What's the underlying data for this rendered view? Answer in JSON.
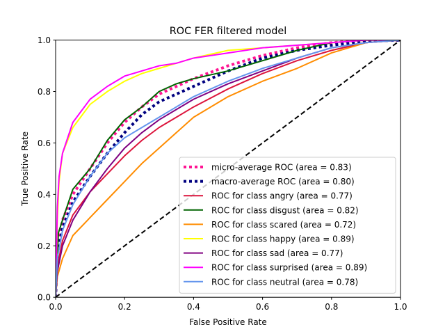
{
  "chart_data": {
    "type": "line",
    "title": "ROC FER filtered model",
    "xlabel": "False Positive Rate",
    "ylabel": "True Positive Rate",
    "xlim": [
      0,
      1
    ],
    "ylim": [
      0,
      1
    ],
    "xticks": [
      "0.0",
      "0.2",
      "0.4",
      "0.6",
      "0.8",
      "1.0"
    ],
    "yticks": [
      "0.0",
      "0.2",
      "0.4",
      "0.6",
      "0.8",
      "1.0"
    ],
    "grid": false,
    "legend_position": "lower-right",
    "series": [
      {
        "name": "micro-average ROC (area = 0.83)",
        "color": "#ff1493",
        "style": "dotted",
        "width": 4,
        "points": [
          [
            0,
            0
          ],
          [
            0.005,
            0.2
          ],
          [
            0.02,
            0.3
          ],
          [
            0.05,
            0.4
          ],
          [
            0.1,
            0.5
          ],
          [
            0.15,
            0.6
          ],
          [
            0.2,
            0.68
          ],
          [
            0.25,
            0.74
          ],
          [
            0.3,
            0.79
          ],
          [
            0.35,
            0.82
          ],
          [
            0.4,
            0.85
          ],
          [
            0.5,
            0.9
          ],
          [
            0.6,
            0.94
          ],
          [
            0.7,
            0.97
          ],
          [
            0.8,
            0.99
          ],
          [
            0.9,
            1.0
          ],
          [
            1,
            1
          ]
        ]
      },
      {
        "name": "macro-average ROC (area = 0.80)",
        "color": "#000080",
        "style": "dotted",
        "width": 4,
        "points": [
          [
            0,
            0
          ],
          [
            0.005,
            0.17
          ],
          [
            0.02,
            0.27
          ],
          [
            0.05,
            0.37
          ],
          [
            0.1,
            0.47
          ],
          [
            0.15,
            0.56
          ],
          [
            0.2,
            0.64
          ],
          [
            0.25,
            0.71
          ],
          [
            0.3,
            0.76
          ],
          [
            0.35,
            0.79
          ],
          [
            0.4,
            0.82
          ],
          [
            0.5,
            0.88
          ],
          [
            0.6,
            0.93
          ],
          [
            0.7,
            0.96
          ],
          [
            0.8,
            0.98
          ],
          [
            0.9,
            0.995
          ],
          [
            1,
            1
          ]
        ]
      },
      {
        "name": "ROC for class angry (area = 0.77)",
        "color": "#dc143c",
        "style": "solid",
        "width": 2,
        "points": [
          [
            0,
            0
          ],
          [
            0.005,
            0.12
          ],
          [
            0.02,
            0.22
          ],
          [
            0.05,
            0.32
          ],
          [
            0.1,
            0.41
          ],
          [
            0.15,
            0.48
          ],
          [
            0.2,
            0.55
          ],
          [
            0.25,
            0.61
          ],
          [
            0.3,
            0.66
          ],
          [
            0.35,
            0.7
          ],
          [
            0.4,
            0.74
          ],
          [
            0.5,
            0.81
          ],
          [
            0.6,
            0.87
          ],
          [
            0.7,
            0.92
          ],
          [
            0.8,
            0.96
          ],
          [
            0.9,
            0.99
          ],
          [
            1,
            1
          ]
        ]
      },
      {
        "name": "ROC for class disgust (area = 0.82)",
        "color": "#006400",
        "style": "solid",
        "width": 2,
        "points": [
          [
            0,
            0
          ],
          [
            0.008,
            0.25
          ],
          [
            0.02,
            0.3
          ],
          [
            0.05,
            0.42
          ],
          [
            0.1,
            0.5
          ],
          [
            0.15,
            0.61
          ],
          [
            0.2,
            0.69
          ],
          [
            0.25,
            0.74
          ],
          [
            0.3,
            0.8
          ],
          [
            0.35,
            0.83
          ],
          [
            0.4,
            0.85
          ],
          [
            0.5,
            0.88
          ],
          [
            0.6,
            0.92
          ],
          [
            0.7,
            0.96
          ],
          [
            0.8,
            0.99
          ],
          [
            0.9,
            1.0
          ],
          [
            1,
            1
          ]
        ]
      },
      {
        "name": "ROC for class scared (area = 0.72)",
        "color": "#ff8c00",
        "style": "solid",
        "width": 2,
        "points": [
          [
            0,
            0
          ],
          [
            0.005,
            0.08
          ],
          [
            0.02,
            0.15
          ],
          [
            0.05,
            0.24
          ],
          [
            0.1,
            0.31
          ],
          [
            0.15,
            0.38
          ],
          [
            0.2,
            0.45
          ],
          [
            0.25,
            0.52
          ],
          [
            0.3,
            0.58
          ],
          [
            0.35,
            0.64
          ],
          [
            0.4,
            0.7
          ],
          [
            0.5,
            0.78
          ],
          [
            0.6,
            0.84
          ],
          [
            0.7,
            0.89
          ],
          [
            0.8,
            0.95
          ],
          [
            0.9,
            0.99
          ],
          [
            1,
            1
          ]
        ]
      },
      {
        "name": "ROC for class happy (area = 0.89)",
        "color": "#ffff00",
        "style": "solid",
        "width": 2,
        "points": [
          [
            0,
            0
          ],
          [
            0.005,
            0.3
          ],
          [
            0.01,
            0.45
          ],
          [
            0.02,
            0.56
          ],
          [
            0.05,
            0.66
          ],
          [
            0.1,
            0.75
          ],
          [
            0.15,
            0.8
          ],
          [
            0.2,
            0.84
          ],
          [
            0.25,
            0.87
          ],
          [
            0.3,
            0.89
          ],
          [
            0.35,
            0.91
          ],
          [
            0.4,
            0.93
          ],
          [
            0.5,
            0.96
          ],
          [
            0.6,
            0.97
          ],
          [
            0.7,
            0.98
          ],
          [
            0.8,
            0.99
          ],
          [
            0.9,
            1.0
          ],
          [
            1,
            1
          ]
        ]
      },
      {
        "name": "ROC for class sad (area = 0.77)",
        "color": "#800080",
        "style": "solid",
        "width": 2,
        "points": [
          [
            0,
            0
          ],
          [
            0.005,
            0.1
          ],
          [
            0.02,
            0.2
          ],
          [
            0.05,
            0.3
          ],
          [
            0.1,
            0.41
          ],
          [
            0.15,
            0.5
          ],
          [
            0.2,
            0.58
          ],
          [
            0.25,
            0.64
          ],
          [
            0.3,
            0.69
          ],
          [
            0.35,
            0.73
          ],
          [
            0.4,
            0.77
          ],
          [
            0.5,
            0.83
          ],
          [
            0.6,
            0.88
          ],
          [
            0.7,
            0.93
          ],
          [
            0.8,
            0.97
          ],
          [
            0.9,
            0.99
          ],
          [
            1,
            1
          ]
        ]
      },
      {
        "name": "ROC for class surprised (area = 0.89)",
        "color": "#ff00ff",
        "style": "solid",
        "width": 2,
        "points": [
          [
            0,
            0
          ],
          [
            0.005,
            0.35
          ],
          [
            0.01,
            0.47
          ],
          [
            0.02,
            0.56
          ],
          [
            0.05,
            0.68
          ],
          [
            0.1,
            0.77
          ],
          [
            0.15,
            0.82
          ],
          [
            0.2,
            0.86
          ],
          [
            0.25,
            0.88
          ],
          [
            0.3,
            0.9
          ],
          [
            0.35,
            0.91
          ],
          [
            0.4,
            0.93
          ],
          [
            0.5,
            0.95
          ],
          [
            0.6,
            0.97
          ],
          [
            0.7,
            0.98
          ],
          [
            0.8,
            0.99
          ],
          [
            0.9,
            1.0
          ],
          [
            1,
            1
          ]
        ]
      },
      {
        "name": "ROC for class neutral (area = 0.78)",
        "color": "#6495ed",
        "style": "solid",
        "width": 2,
        "points": [
          [
            0,
            0
          ],
          [
            0.005,
            0.15
          ],
          [
            0.02,
            0.26
          ],
          [
            0.05,
            0.36
          ],
          [
            0.1,
            0.47
          ],
          [
            0.15,
            0.56
          ],
          [
            0.2,
            0.62
          ],
          [
            0.25,
            0.66
          ],
          [
            0.3,
            0.7
          ],
          [
            0.35,
            0.74
          ],
          [
            0.4,
            0.78
          ],
          [
            0.5,
            0.84
          ],
          [
            0.6,
            0.89
          ],
          [
            0.7,
            0.93
          ],
          [
            0.8,
            0.97
          ],
          [
            0.9,
            0.99
          ],
          [
            1,
            1
          ]
        ]
      },
      {
        "name": "",
        "color": "#000000",
        "style": "dashed",
        "width": 2,
        "points": [
          [
            0,
            0
          ],
          [
            1,
            1
          ]
        ]
      }
    ]
  }
}
